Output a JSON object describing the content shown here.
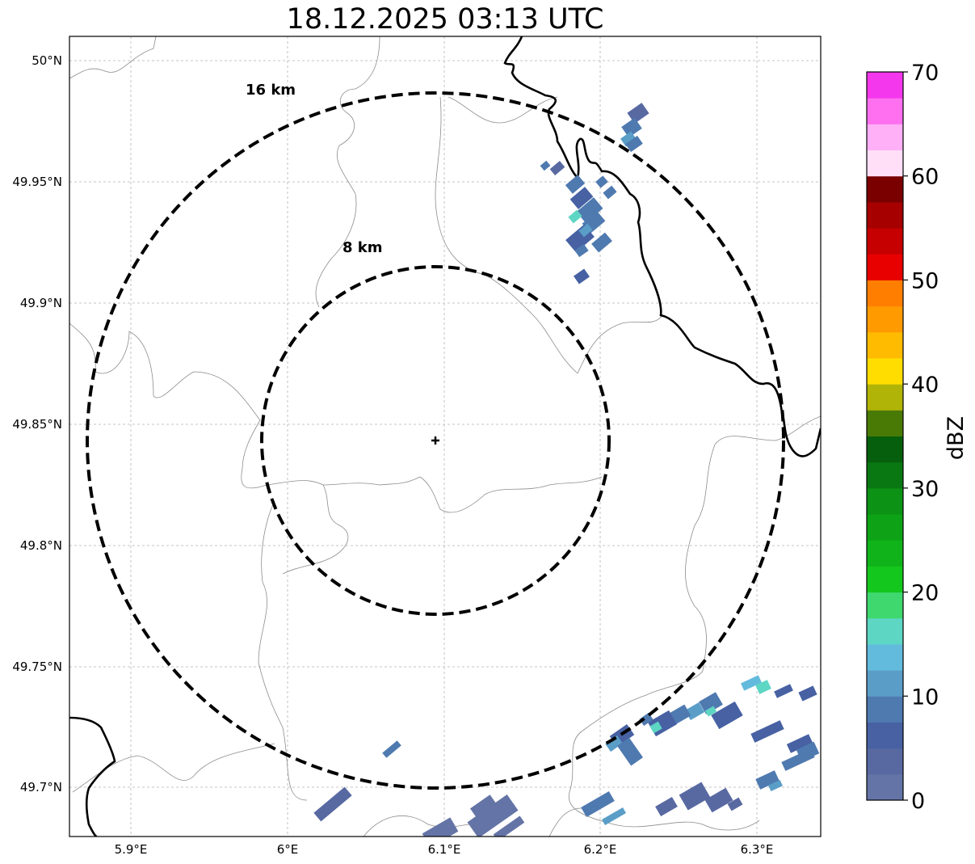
{
  "title": "18.12.2025 03:13 UTC",
  "lat_ticks": [
    "50°N",
    "49.95°N",
    "49.9°N",
    "49.85°N",
    "49.8°N",
    "49.75°N",
    "49.7°N"
  ],
  "lon_ticks": [
    "5.9°E",
    "6°E",
    "6.1°E",
    "6.2°E",
    "6.3°E"
  ],
  "rings": [
    {
      "label": "8 km",
      "radius_km": 8
    },
    {
      "label": "16 km",
      "radius_km": 16
    }
  ],
  "radar_site": {
    "lat": 49.843,
    "lon": 6.095
  },
  "colorbar": {
    "label": "dBZ",
    "ticks": [
      "0",
      "10",
      "20",
      "30",
      "40",
      "50",
      "60",
      "70"
    ],
    "range": [
      0,
      70
    ],
    "colors": [
      "#6474a6",
      "#5869a2",
      "#4761a3",
      "#4f7ab0",
      "#5a9ec8",
      "#62bbdc",
      "#5ed6c4",
      "#3ed86f",
      "#14c71c",
      "#10b41a",
      "#0ea316",
      "#0c9214",
      "#097812",
      "#065f0c",
      "#4a7a06",
      "#b0b407",
      "#ffdd00",
      "#ffbb00",
      "#ff9a00",
      "#ff7e00",
      "#e80000",
      "#c60000",
      "#a60000",
      "#7a0000",
      "#ffdff8",
      "#ffb0f6",
      "#ff70f0",
      "#f437ec"
    ]
  },
  "colors": {
    "border_country": "#000000",
    "border_admin": "#8c8c8c",
    "grid": "#b4b4b4",
    "rings": "#000000"
  }
}
